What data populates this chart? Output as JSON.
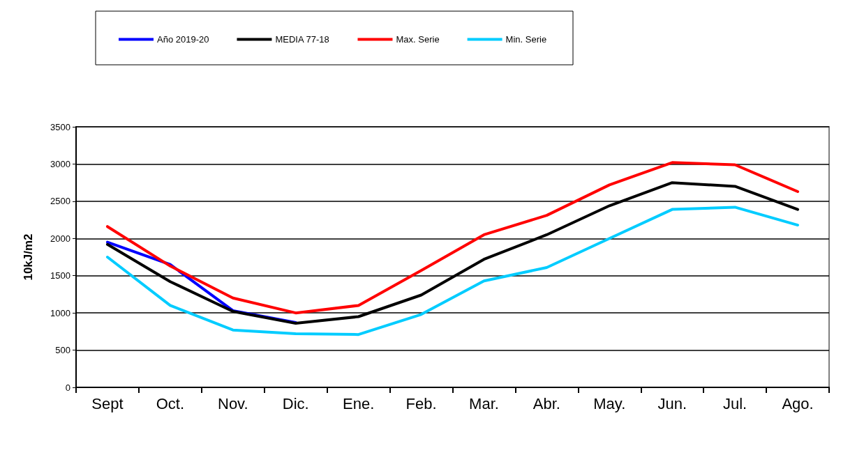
{
  "chart_data": {
    "type": "line",
    "ylabel": "10kJ/m2",
    "categories": [
      "Sept",
      "Oct.",
      "Nov.",
      "Dic.",
      "Ene.",
      "Feb.",
      "Mar.",
      "Abr.",
      "May.",
      "Jun.",
      "Jul.",
      "Ago."
    ],
    "series": [
      {
        "name": "Año 2019-20",
        "color": "#0000ff",
        "values": [
          1950,
          1650,
          1030,
          870,
          null,
          null,
          null,
          null,
          null,
          null,
          null,
          null
        ]
      },
      {
        "name": "MEDIA 77-18",
        "color": "#000000",
        "values": [
          1920,
          1420,
          1020,
          860,
          950,
          1240,
          1720,
          2050,
          2440,
          2750,
          2700,
          2390
        ]
      },
      {
        "name": "Max. Serie",
        "color": "#ff0000",
        "values": [
          2160,
          1630,
          1200,
          1000,
          1100,
          1570,
          2050,
          2310,
          2720,
          3020,
          2990,
          2630
        ]
      },
      {
        "name": "Min. Serie",
        "color": "#00ccff",
        "values": [
          1750,
          1100,
          770,
          720,
          710,
          980,
          1430,
          1610,
          2000,
          2390,
          2420,
          2180
        ]
      }
    ],
    "ylim": [
      0,
      3500
    ],
    "yticks": [
      0,
      500,
      1000,
      1500,
      2000,
      2500,
      3000,
      3500
    ],
    "grid": "y",
    "legend": "top left",
    "marker": "none",
    "line_style": "solid"
  }
}
